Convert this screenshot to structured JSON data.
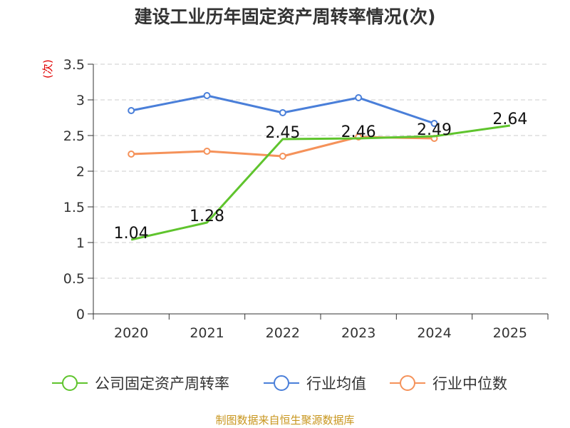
{
  "colors": {
    "primary": "#5fc42d",
    "industry_avg": "#4a7fd9",
    "industry_median": "#f5925a",
    "unit": "#e00000",
    "source": "#c8961e"
  },
  "chart_data": {
    "type": "line",
    "title": "建设工业历年固定资产周转率情况(次)",
    "unit_label": "(次)",
    "categories": [
      "2020",
      "2021",
      "2022",
      "2023",
      "2024",
      "2025"
    ],
    "y_ticks": [
      "0",
      "0.5",
      "1",
      "1.5",
      "2",
      "2.5",
      "3",
      "3.5"
    ],
    "ylim": [
      0,
      3.5
    ],
    "grid": true,
    "series": [
      {
        "name": "公司固定资产周转率",
        "values": [
          1.04,
          1.28,
          2.45,
          2.46,
          2.49,
          2.64
        ],
        "show_labels": true,
        "labels": [
          "1.04",
          "1.28",
          "2.45",
          "2.46",
          "2.49",
          "2.64"
        ]
      },
      {
        "name": "行业均值",
        "values": [
          2.85,
          3.06,
          2.82,
          3.03,
          2.67,
          null
        ],
        "show_labels": false
      },
      {
        "name": "行业中位数",
        "values": [
          2.24,
          2.28,
          2.21,
          2.48,
          2.46,
          null
        ],
        "show_labels": false
      }
    ],
    "legend_position": "bottom"
  },
  "source": "制图数据来自恒生聚源数据库"
}
